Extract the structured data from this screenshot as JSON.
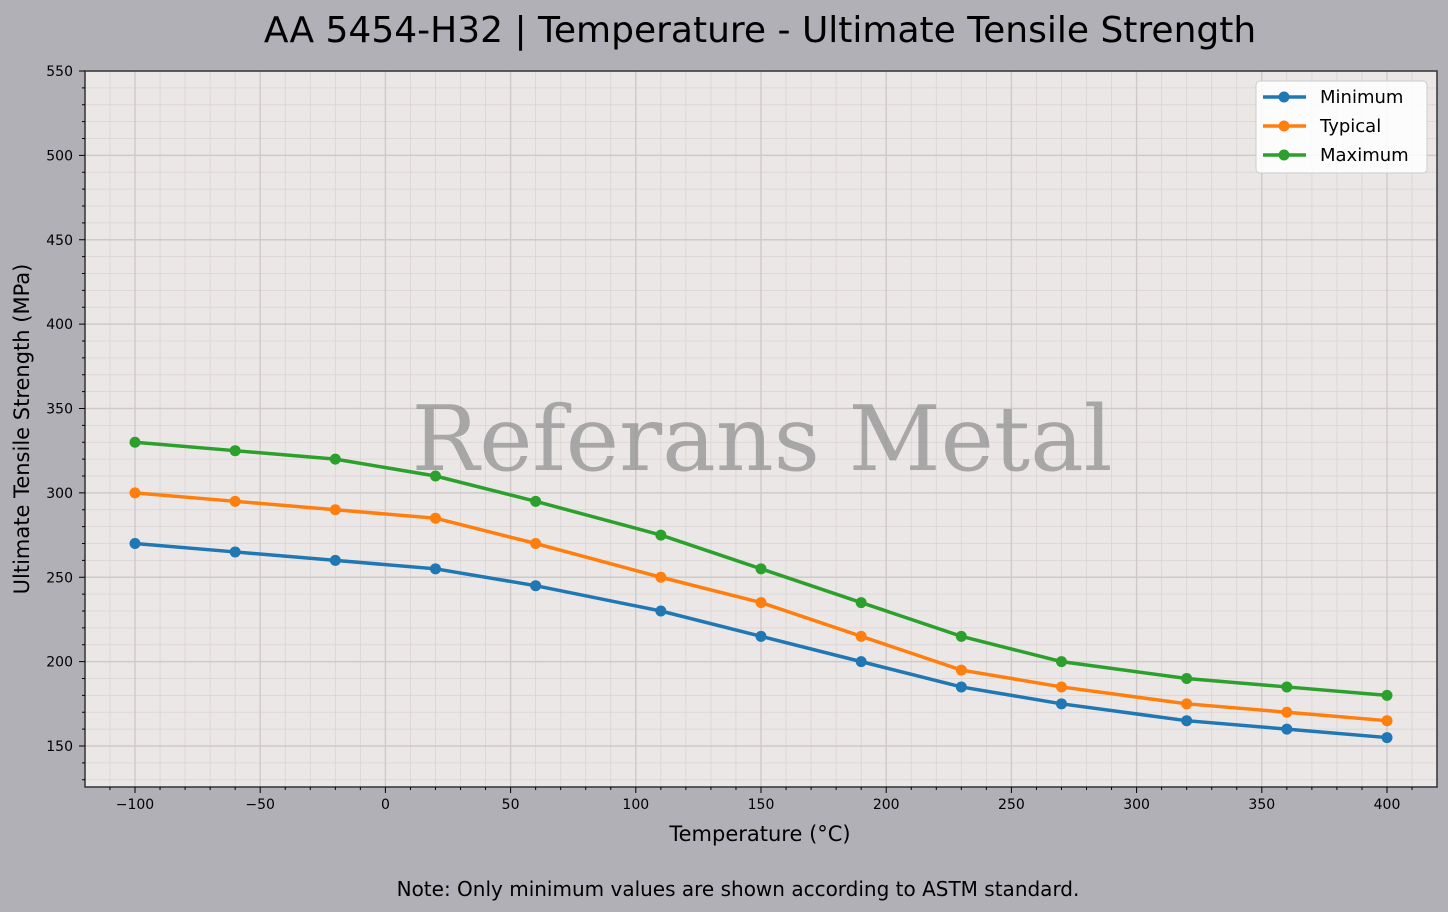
{
  "title": "AA 5454-H32 | Temperature - Ultimate Tensile Strength",
  "watermark": "Referans Metal",
  "note": "Note: Only minimum values are shown according to ASTM standard.",
  "colors": {
    "figure_bg": "#b1b0b6",
    "plot_bg": "#ebe7e6",
    "minimum": "#1f77b4",
    "typical": "#ff7f0e",
    "maximum": "#2ca02c"
  },
  "chart_data": {
    "type": "line",
    "title": "AA 5454-H32 | Temperature - Ultimate Tensile Strength",
    "xlabel": "Temperature (°C)",
    "ylabel": "Ultimate Tensile Strength (MPa)",
    "xlim": [
      -120,
      420
    ],
    "ylim": [
      125,
      550
    ],
    "xticks": [
      -100,
      -50,
      0,
      50,
      100,
      150,
      200,
      250,
      300,
      350,
      400
    ],
    "xtick_labels": [
      "−100",
      "−50",
      "0",
      "50",
      "100",
      "150",
      "200",
      "250",
      "300",
      "350",
      "400"
    ],
    "yticks": [
      150,
      200,
      250,
      300,
      350,
      400,
      450,
      500,
      550
    ],
    "grid": true,
    "minor_grid": true,
    "legend_position": "upper right",
    "x": [
      -100,
      -60,
      -20,
      20,
      60,
      110,
      150,
      190,
      230,
      270,
      320,
      360,
      400
    ],
    "series": [
      {
        "name": "Minimum",
        "color": "#1f77b4",
        "values": [
          270,
          265,
          260,
          255,
          245,
          230,
          215,
          200,
          185,
          175,
          165,
          160,
          155
        ]
      },
      {
        "name": "Typical",
        "color": "#ff7f0e",
        "values": [
          300,
          295,
          290,
          285,
          270,
          250,
          235,
          215,
          195,
          185,
          175,
          170,
          165
        ]
      },
      {
        "name": "Maximum",
        "color": "#2ca02c",
        "values": [
          330,
          325,
          320,
          310,
          295,
          275,
          255,
          235,
          215,
          200,
          190,
          185,
          180
        ]
      }
    ],
    "annotations": [
      "Referans Metal",
      "Note: Only minimum values are shown according to ASTM standard."
    ]
  }
}
